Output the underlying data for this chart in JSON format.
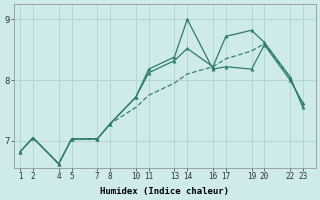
{
  "xlabel": "Humidex (Indice chaleur)",
  "background_color": "#ceeaea",
  "line_color": "#2e7b6e",
  "xlim": [
    0.5,
    24
  ],
  "ylim": [
    6.55,
    9.25
  ],
  "xticks": [
    1,
    2,
    4,
    5,
    7,
    8,
    10,
    11,
    13,
    14,
    16,
    17,
    19,
    20,
    22,
    23
  ],
  "xtick_labels": [
    "1",
    "2",
    "4",
    "5",
    "7",
    "8",
    "10",
    "11",
    "13",
    "14",
    "16",
    "17",
    "19",
    "20",
    "22",
    "23"
  ],
  "yticks": [
    7,
    8,
    9
  ],
  "grid_color": "#aed4d4",
  "series1_x": [
    1,
    2,
    4,
    5,
    7,
    8,
    10,
    11,
    13,
    14,
    16,
    17,
    19,
    20,
    22,
    23
  ],
  "series1_y": [
    6.82,
    7.05,
    6.62,
    7.03,
    7.03,
    7.28,
    7.72,
    8.18,
    8.38,
    9.0,
    8.18,
    8.22,
    8.18,
    8.58,
    8.0,
    7.62
  ],
  "series2_x": [
    1,
    2,
    4,
    5,
    7,
    8,
    10,
    11,
    13,
    14,
    16,
    17,
    19,
    20,
    22,
    23
  ],
  "series2_y": [
    6.82,
    7.05,
    6.62,
    7.03,
    7.03,
    7.28,
    7.72,
    8.12,
    8.32,
    8.52,
    8.22,
    8.72,
    8.82,
    8.62,
    8.05,
    7.55
  ],
  "series3_x": [
    1,
    2,
    4,
    5,
    7,
    8,
    10,
    11,
    13,
    14,
    16,
    17,
    19,
    20,
    22,
    23
  ],
  "series3_y": [
    6.82,
    7.05,
    6.62,
    7.03,
    7.03,
    7.28,
    7.55,
    7.75,
    7.95,
    8.1,
    8.22,
    8.35,
    8.48,
    8.6,
    8.05,
    7.55
  ]
}
